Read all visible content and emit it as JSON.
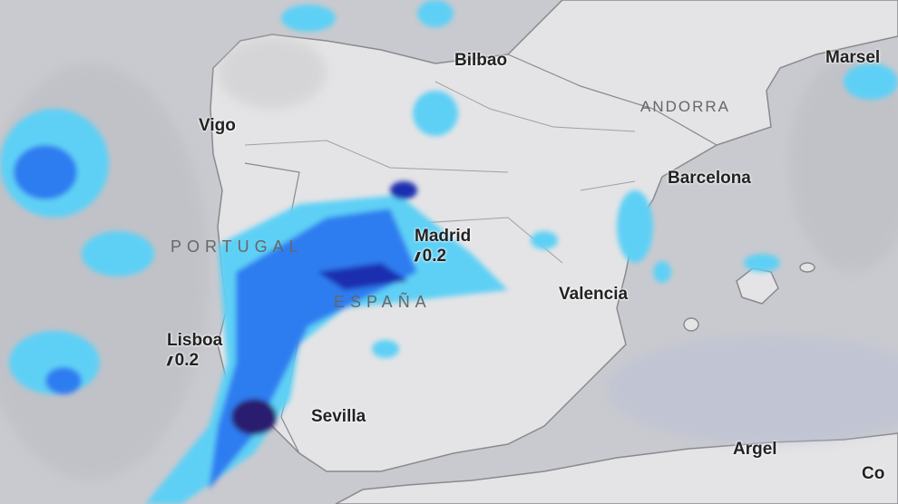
{
  "map": {
    "colors": {
      "sea": "#c9cacf",
      "land": "#e4e4e6",
      "rain_light": "#5fd0f5",
      "rain_mid": "#2f7df0",
      "rain_heavy": "#1a2fb0",
      "rain_extreme": "#2a1a6e"
    },
    "countries": [
      "PORTUGAL",
      "ESPAÑA",
      "ANDORRA"
    ],
    "cities": [
      {
        "name": "Bilbao"
      },
      {
        "name": "Marsel"
      },
      {
        "name": "Vigo"
      },
      {
        "name": "Barcelona"
      },
      {
        "name": "Madrid",
        "precip": "0.2",
        "icon": "rain-icon"
      },
      {
        "name": "Valencia"
      },
      {
        "name": "Lisboa",
        "precip": "0.2",
        "icon": "rain-icon"
      },
      {
        "name": "Sevilla"
      },
      {
        "name": "Argel"
      },
      {
        "name": "Co"
      }
    ]
  }
}
